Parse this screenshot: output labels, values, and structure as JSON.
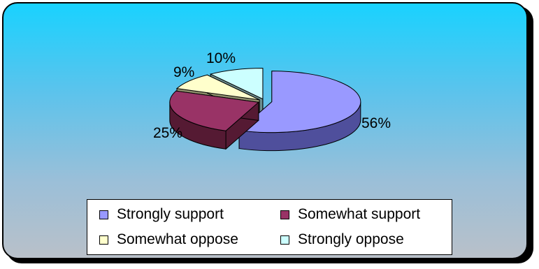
{
  "chart_data": {
    "type": "pie",
    "three_d": true,
    "exploded": true,
    "slices": [
      {
        "label": "Strongly support",
        "value": 56,
        "value_label": "56%",
        "color": "#9999ff",
        "side_color": "#4f4f9c"
      },
      {
        "label": "Somewhat support",
        "value": 25,
        "value_label": "25%",
        "color": "#993366",
        "side_color": "#551a33"
      },
      {
        "label": "Somewhat oppose",
        "value": 9,
        "value_label": "9%",
        "color": "#ffffcc",
        "side_color": "#8f8f6c"
      },
      {
        "label": "Strongly oppose",
        "value": 10,
        "value_label": "10%",
        "color": "#ccffff",
        "side_color": "#6e8f8f"
      }
    ],
    "legend_position": "bottom"
  }
}
